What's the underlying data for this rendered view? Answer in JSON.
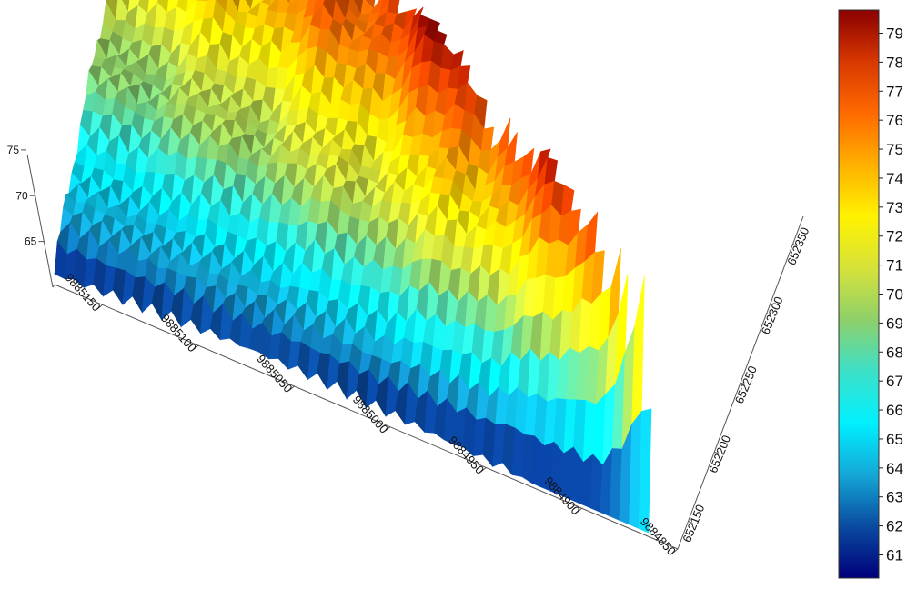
{
  "chart_data": {
    "type": "surface3d",
    "title": "",
    "xlabel": "",
    "ylabel": "",
    "zlabel": "",
    "x_axis": {
      "ticks": [
        "9885150",
        "9885100",
        "9885050",
        "9885000",
        "9884950",
        "9884900",
        "9884850"
      ],
      "range": [
        9884850,
        9885175
      ]
    },
    "y_axis": {
      "ticks": [
        "652150",
        "652200",
        "652250",
        "652300",
        "652350"
      ],
      "range": [
        652130,
        652370
      ]
    },
    "z_axis": {
      "ticks": [
        "65",
        "70",
        "75"
      ],
      "range": [
        60,
        80
      ]
    },
    "colorbar": {
      "ticks": [
        "61",
        "62",
        "63",
        "64",
        "65",
        "66",
        "67",
        "68",
        "69",
        "70",
        "71",
        "72",
        "73",
        "74",
        "75",
        "76",
        "77",
        "78",
        "79"
      ],
      "range": [
        60.2,
        79.8
      ],
      "colormap": [
        "#00007a",
        "#0a4aa0",
        "#14a7d6",
        "#00f0ff",
        "#3ce0c8",
        "#8ed06a",
        "#d6e23a",
        "#fff200",
        "#ffb000",
        "#ff6a00",
        "#d83800",
        "#8a0000"
      ]
    },
    "grid": false,
    "legend": "colorbar-right"
  }
}
